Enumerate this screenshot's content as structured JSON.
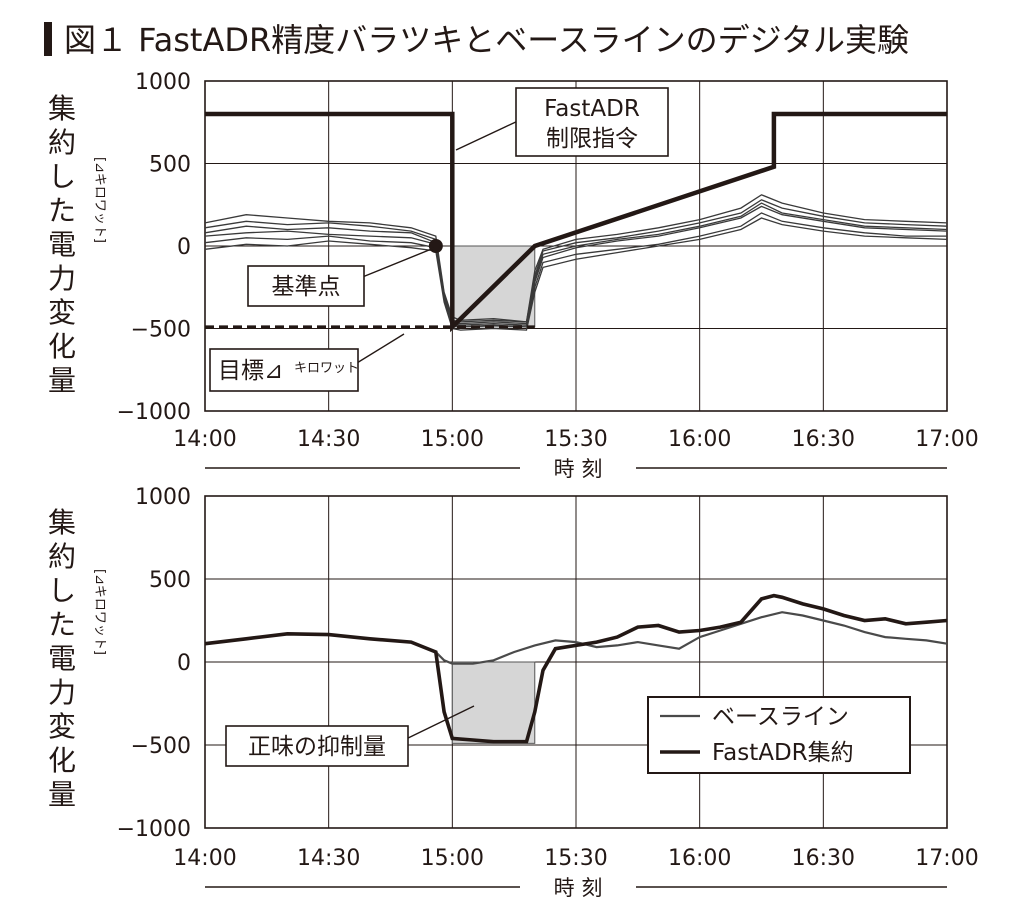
{
  "figure_title": "図１ FastADR精度バラツキとベースラインのデジタル実験",
  "chart_data": [
    {
      "type": "line",
      "ylabel": "集約した電力変化量",
      "ylabel_unit": "[⊿キロワット]",
      "xlabel": "時 刻",
      "ylim": [
        -1000,
        1000
      ],
      "yticks": [
        1000,
        500,
        0,
        -500,
        -1000
      ],
      "ytick_labels": [
        "1000",
        "500",
        "0",
        "−500",
        "−1000"
      ],
      "xlim": [
        0,
        180
      ],
      "xticks": [
        0,
        30,
        60,
        90,
        120,
        150,
        180
      ],
      "xtick_labels": [
        "14:00",
        "14:30",
        "15:00",
        "15:30",
        "16:00",
        "16:30",
        "17:00"
      ],
      "grid": true,
      "command_line": {
        "x": [
          0,
          60,
          60,
          80,
          138,
          138,
          180
        ],
        "y": [
          800,
          800,
          -490,
          0,
          480,
          800,
          800
        ]
      },
      "target_line": {
        "y": -490,
        "x": [
          0,
          80
        ]
      },
      "reference_point": {
        "x": 56,
        "y": 0
      },
      "shaded_region": {
        "x": [
          60,
          80
        ],
        "y": [
          -490,
          0
        ]
      },
      "traces": [
        {
          "x": [
            0,
            10,
            20,
            30,
            40,
            50,
            56,
            58,
            60,
            62,
            70,
            78,
            80,
            82,
            90,
            100,
            110,
            120,
            130,
            135,
            140,
            150,
            160,
            170,
            180
          ],
          "y": [
            80,
            120,
            100,
            110,
            90,
            80,
            20,
            -300,
            -460,
            -470,
            -460,
            -470,
            -200,
            -50,
            0,
            40,
            70,
            120,
            180,
            260,
            200,
            160,
            120,
            110,
            100
          ]
        },
        {
          "x": [
            0,
            10,
            20,
            30,
            40,
            50,
            56,
            58,
            60,
            62,
            70,
            78,
            80,
            82,
            90,
            100,
            110,
            120,
            130,
            135,
            140,
            150,
            160,
            170,
            180
          ],
          "y": [
            20,
            50,
            40,
            60,
            30,
            20,
            -10,
            -320,
            -480,
            -490,
            -480,
            -490,
            -250,
            -100,
            -50,
            -20,
            10,
            60,
            120,
            200,
            150,
            110,
            80,
            60,
            60
          ]
        },
        {
          "x": [
            0,
            10,
            20,
            30,
            40,
            50,
            56,
            58,
            60,
            62,
            70,
            78,
            80,
            82,
            90,
            100,
            110,
            120,
            130,
            135,
            140,
            150,
            160,
            170,
            180
          ],
          "y": [
            140,
            190,
            170,
            150,
            140,
            110,
            60,
            -280,
            -430,
            -450,
            -440,
            -460,
            -150,
            -20,
            40,
            70,
            110,
            160,
            230,
            310,
            260,
            200,
            160,
            150,
            140
          ]
        },
        {
          "x": [
            0,
            10,
            20,
            30,
            40,
            50,
            56,
            58,
            60,
            62,
            70,
            78,
            80,
            82,
            90,
            100,
            110,
            120,
            130,
            135,
            140,
            150,
            160,
            170,
            180
          ],
          "y": [
            -20,
            10,
            0,
            30,
            10,
            -10,
            -30,
            -340,
            -500,
            -510,
            -500,
            -510,
            -280,
            -130,
            -80,
            -40,
            0,
            40,
            100,
            170,
            130,
            90,
            60,
            50,
            40
          ]
        },
        {
          "x": [
            0,
            10,
            20,
            30,
            40,
            50,
            56,
            58,
            60,
            62,
            70,
            78,
            80,
            82,
            90,
            100,
            110,
            120,
            130,
            135,
            140,
            150,
            160,
            170,
            180
          ],
          "y": [
            60,
            80,
            90,
            70,
            60,
            50,
            10,
            -310,
            -470,
            -480,
            -470,
            -480,
            -220,
            -70,
            -10,
            30,
            60,
            110,
            170,
            240,
            190,
            150,
            110,
            100,
            90
          ]
        },
        {
          "x": [
            0,
            10,
            20,
            30,
            40,
            50,
            56,
            58,
            60,
            62,
            70,
            78,
            80,
            82,
            90,
            100,
            110,
            120,
            130,
            135,
            140,
            150,
            160,
            170,
            180
          ],
          "y": [
            110,
            150,
            130,
            140,
            120,
            90,
            40,
            -290,
            -450,
            -460,
            -450,
            -460,
            -180,
            -30,
            20,
            50,
            90,
            140,
            200,
            280,
            230,
            180,
            140,
            130,
            120
          ]
        }
      ],
      "annotations": [
        {
          "text": "FastADR",
          "text2": "制限指令"
        },
        {
          "text": "基準点"
        },
        {
          "text": "目標⊿",
          "text_small": "キロワット"
        }
      ]
    },
    {
      "type": "line",
      "ylabel": "集約した電力変化量",
      "ylabel_unit": "[⊿キロワット]",
      "xlabel": "時 刻",
      "ylim": [
        -1000,
        1000
      ],
      "yticks": [
        1000,
        500,
        0,
        -500,
        -1000
      ],
      "ytick_labels": [
        "1000",
        "500",
        "0",
        "−500",
        "−1000"
      ],
      "xlim": [
        0,
        180
      ],
      "xticks": [
        0,
        30,
        60,
        90,
        120,
        150,
        180
      ],
      "xtick_labels": [
        "14:00",
        "14:30",
        "15:00",
        "15:30",
        "16:00",
        "16:30",
        "17:00"
      ],
      "grid": true,
      "legend_position": "bottom-right",
      "shaded_region": {
        "x": [
          60,
          80
        ],
        "y": [
          -490,
          0
        ]
      },
      "series": [
        {
          "name": "ベースライン",
          "x": [
            0,
            10,
            20,
            30,
            40,
            50,
            56,
            58,
            60,
            65,
            70,
            75,
            80,
            85,
            90,
            95,
            100,
            105,
            110,
            115,
            120,
            125,
            130,
            135,
            140,
            145,
            150,
            155,
            160,
            165,
            170,
            175,
            180
          ],
          "y": [
            110,
            140,
            170,
            165,
            140,
            120,
            60,
            10,
            -10,
            -10,
            10,
            60,
            100,
            130,
            120,
            90,
            100,
            120,
            100,
            80,
            150,
            190,
            230,
            270,
            300,
            280,
            250,
            220,
            180,
            150,
            140,
            130,
            110
          ]
        },
        {
          "name": "FastADR集約",
          "x": [
            0,
            10,
            20,
            30,
            40,
            50,
            56,
            58,
            60,
            65,
            70,
            75,
            78,
            80,
            82,
            85,
            90,
            95,
            100,
            105,
            110,
            115,
            120,
            125,
            130,
            135,
            138,
            140,
            145,
            150,
            155,
            160,
            165,
            170,
            175,
            180
          ],
          "y": [
            110,
            140,
            170,
            165,
            140,
            120,
            60,
            -300,
            -460,
            -470,
            -480,
            -480,
            -480,
            -300,
            -50,
            80,
            100,
            120,
            150,
            210,
            220,
            180,
            190,
            210,
            240,
            380,
            400,
            390,
            350,
            320,
            280,
            250,
            260,
            230,
            240,
            250
          ]
        }
      ],
      "annotations": [
        {
          "text": "正味の抑制量"
        }
      ]
    }
  ]
}
